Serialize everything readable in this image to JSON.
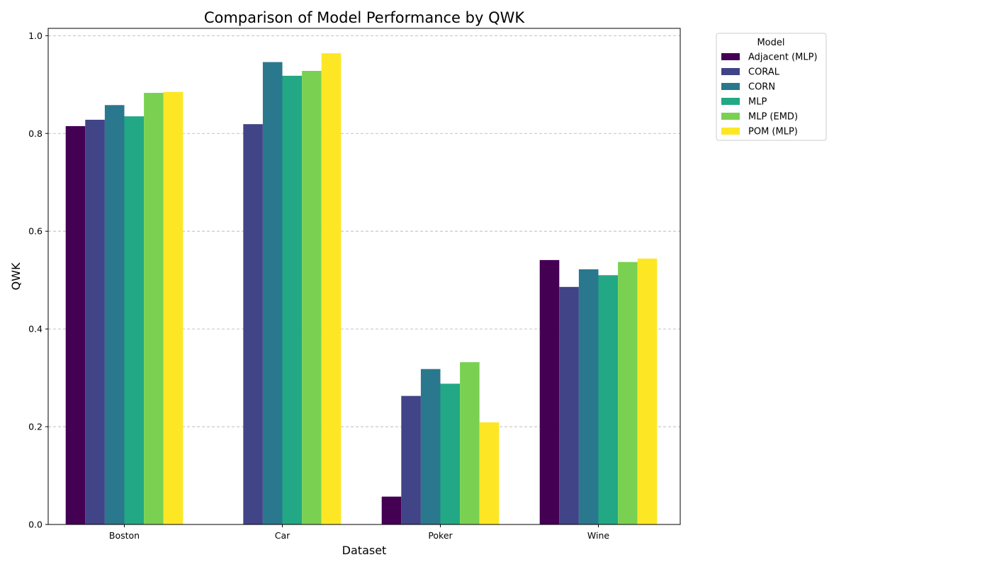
{
  "chart_data": {
    "type": "bar",
    "title": "Comparison of Model Performance by QWK",
    "xlabel": "Dataset",
    "ylabel": "QWK",
    "categories": [
      "Boston",
      "Car",
      "Poker",
      "Wine"
    ],
    "ylim": [
      0,
      1.015
    ],
    "yticks": [
      "0.0",
      "0.2",
      "0.4",
      "0.6",
      "0.8",
      "1.0"
    ],
    "grid": "y-dashed",
    "legend": {
      "title": "Model",
      "placement": "outside-top-right"
    },
    "series": [
      {
        "name": "Adjacent (MLP)",
        "color": "#440154",
        "values": [
          0.815,
          null,
          0.057,
          0.541
        ]
      },
      {
        "name": "CORAL",
        "color": "#414487",
        "values": [
          0.828,
          0.819,
          0.263,
          0.486
        ]
      },
      {
        "name": "CORN",
        "color": "#2a788e",
        "values": [
          0.858,
          0.946,
          0.318,
          0.522
        ]
      },
      {
        "name": "MLP",
        "color": "#22a884",
        "values": [
          0.835,
          0.918,
          0.288,
          0.51
        ]
      },
      {
        "name": "MLP (EMD)",
        "color": "#7ad151",
        "values": [
          0.883,
          0.928,
          0.332,
          0.537
        ]
      },
      {
        "name": "POM (MLP)",
        "color": "#fde725",
        "values": [
          0.885,
          0.964,
          0.209,
          0.544
        ]
      }
    ]
  }
}
